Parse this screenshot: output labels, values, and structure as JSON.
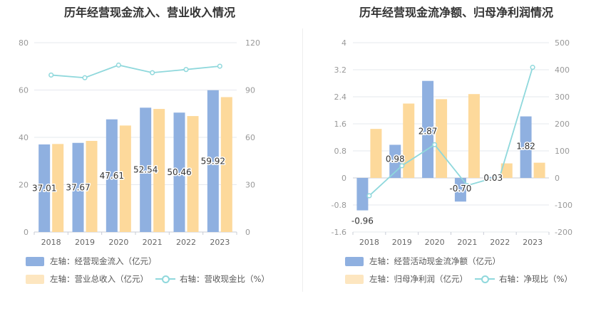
{
  "chart_data": [
    {
      "type": "bar",
      "title": "历年经营现金流入、营业收入情况",
      "categories": [
        "2018",
        "2019",
        "2020",
        "2021",
        "2022",
        "2023"
      ],
      "y_left": {
        "ticks": [
          "0",
          "20",
          "40",
          "60",
          "80"
        ],
        "lim": [
          0,
          80
        ]
      },
      "y_right": {
        "ticks": [
          "0",
          "30",
          "60",
          "90",
          "120"
        ],
        "lim": [
          0,
          120
        ]
      },
      "series": [
        {
          "name": "左轴：经营现金流入（亿元）",
          "type": "bar",
          "axis": "left",
          "color": "#8fb0e0",
          "values": [
            37.01,
            37.67,
            47.61,
            52.54,
            50.46,
            59.92
          ],
          "labels": [
            "37.01",
            "37.67",
            "47.61",
            "52.54",
            "50.46",
            "59.92"
          ]
        },
        {
          "name": "左轴：营业总收入（亿元）",
          "type": "bar",
          "axis": "left",
          "color": "#fdd99b",
          "values": [
            37.2,
            38.5,
            45.0,
            52.0,
            49.0,
            57.0
          ]
        },
        {
          "name": "右轴：营收现金比（%）",
          "type": "line",
          "axis": "right",
          "color": "#8fd8dc",
          "values": [
            99.5,
            97.8,
            105.8,
            101.0,
            103.0,
            105.1
          ]
        }
      ]
    },
    {
      "type": "bar",
      "title": "历年经营现金流净额、归母净利润情况",
      "categories": [
        "2018",
        "2019",
        "2020",
        "2021",
        "2022",
        "2023"
      ],
      "y_left": {
        "ticks": [
          "-1.6",
          "-0.8",
          "0",
          "0.8",
          "1.6",
          "2.4",
          "3.2",
          "4"
        ],
        "lim": [
          -1.6,
          4
        ]
      },
      "y_right": {
        "ticks": [
          "-200",
          "-100",
          "0",
          "100",
          "200",
          "300",
          "400",
          "500"
        ],
        "lim": [
          -200,
          500
        ]
      },
      "series": [
        {
          "name": "左轴：经营活动现金流净额（亿元）",
          "type": "bar",
          "axis": "left",
          "color": "#8fb0e0",
          "values": [
            -0.96,
            0.98,
            2.87,
            -0.7,
            0.03,
            1.82
          ],
          "labels": [
            "-0.96",
            "0.98",
            "2.87",
            "-0.70",
            "0.03",
            "1.82"
          ]
        },
        {
          "name": "左轴：归母净利润（亿元）",
          "type": "bar",
          "axis": "left",
          "color": "#fdd99b",
          "values": [
            1.45,
            2.2,
            2.33,
            2.48,
            0.43,
            0.45
          ]
        },
        {
          "name": "右轴：净现比（%）",
          "type": "line",
          "axis": "right",
          "color": "#8fd8dc",
          "values": [
            -66,
            45,
            123,
            -28,
            7,
            409
          ]
        }
      ]
    }
  ]
}
